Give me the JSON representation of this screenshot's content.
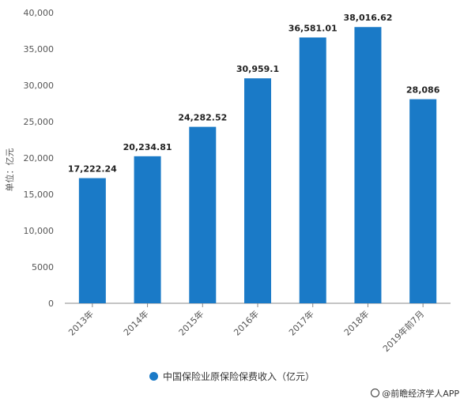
{
  "chart_data": {
    "type": "bar",
    "categories": [
      "2013年",
      "2014年",
      "2015年",
      "2016年",
      "2017年",
      "2018年",
      "2019年前7月"
    ],
    "series": [
      {
        "name": "中国保险业原保险保费收入（亿元）",
        "values": [
          17222.24,
          20234.81,
          24282.52,
          30959.1,
          36581.01,
          38016.62,
          28086
        ],
        "labels": [
          "17,222.24",
          "20,234.81",
          "24,282.52",
          "30,959.1",
          "36,581.01",
          "38,016.62",
          "28,086"
        ]
      }
    ],
    "ylabel": "单位：亿元",
    "xlabel": "",
    "ylim": [
      0,
      40000
    ],
    "yticks": [
      0,
      5000,
      10000,
      15000,
      20000,
      25000,
      30000,
      35000,
      40000
    ],
    "ytick_labels": [
      "0",
      "5000",
      "10,000",
      "15,000",
      "20,000",
      "25,000",
      "30,000",
      "35,000",
      "40,000"
    ],
    "grid": false,
    "legend_position": "bottom-center",
    "colors": {
      "bar": "#1a7ac7",
      "axis": "#888888"
    }
  },
  "legend": {
    "label": "中国保险业原保险保费收入（亿元）"
  },
  "credit": {
    "text": "@前瞻经济学人APP"
  }
}
